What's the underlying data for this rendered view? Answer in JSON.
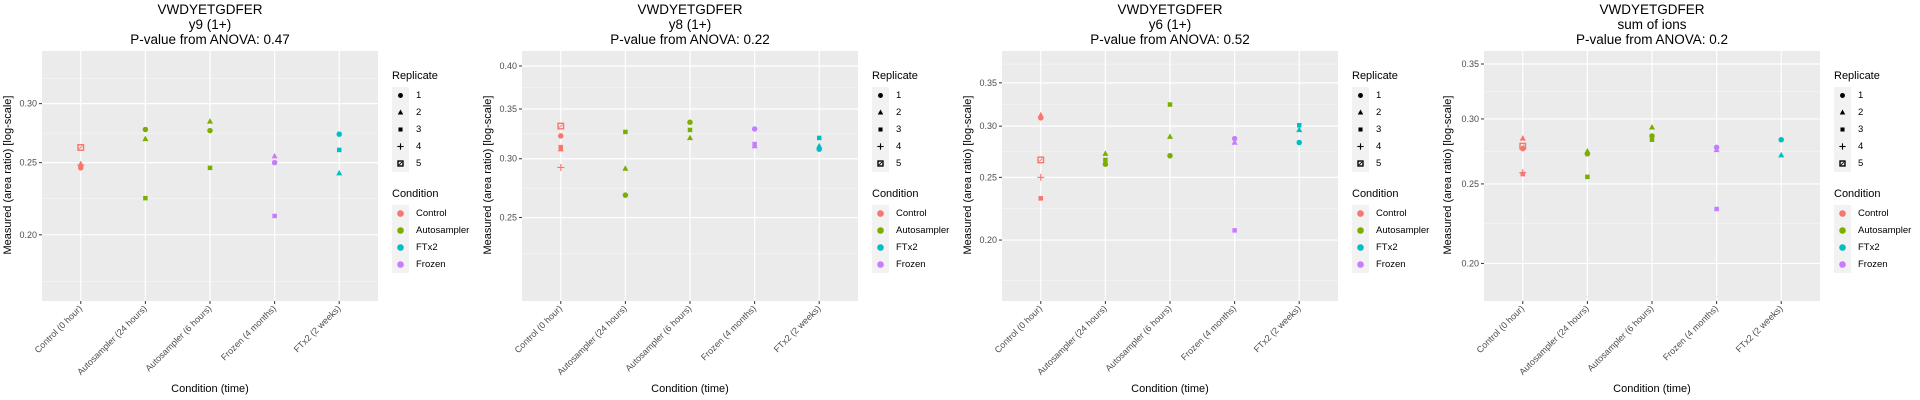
{
  "legend": {
    "replicate_title": "Replicate",
    "replicates": [
      {
        "label": "1",
        "shape": "circle"
      },
      {
        "label": "2",
        "shape": "triangle"
      },
      {
        "label": "3",
        "shape": "square"
      },
      {
        "label": "4",
        "shape": "plus"
      },
      {
        "label": "5",
        "shape": "square-cross"
      }
    ],
    "condition_title": "Condition",
    "conditions": [
      {
        "label": "Control",
        "color": "#F8766D"
      },
      {
        "label": "Autosampler",
        "color": "#7CAE00"
      },
      {
        "label": "FTx2",
        "color": "#00BFC4"
      },
      {
        "label": "Frozen",
        "color": "#C77CFF"
      }
    ]
  },
  "chart_data": [
    {
      "type": "scatter",
      "title": [
        "VWDYETGDFER",
        "y9 (1+)",
        "P-value from ANOVA: 0.47"
      ],
      "xlabel": "Condition (time)",
      "ylabel": "Measured (area ratio) [log-scale]",
      "yscale": "log",
      "ylim": [
        0.163,
        0.353
      ],
      "yticks": [
        0.2,
        0.25,
        0.3
      ],
      "ytick_labels": [
        "0.20",
        "0.25",
        "0.30"
      ],
      "grid": true,
      "legend_position": "right",
      "categories": [
        "Control (0 hour)",
        "Autosampler (24 hours)",
        "Autosampler (6 hours)",
        "Frozen (4 months)",
        "FTx2 (2 weeks)"
      ],
      "points": [
        {
          "x": "Control (0 hour)",
          "condition": "Control",
          "replicate": "5",
          "y": 0.262
        },
        {
          "x": "Control (0 hour)",
          "condition": "Control",
          "replicate": "2",
          "y": 0.249
        },
        {
          "x": "Control (0 hour)",
          "condition": "Control",
          "replicate": "4",
          "y": 0.248
        },
        {
          "x": "Control (0 hour)",
          "condition": "Control",
          "replicate": "3",
          "y": 0.247
        },
        {
          "x": "Control (0 hour)",
          "condition": "Control",
          "replicate": "1",
          "y": 0.246
        },
        {
          "x": "Autosampler (24 hours)",
          "condition": "Autosampler",
          "replicate": "1",
          "y": 0.277
        },
        {
          "x": "Autosampler (24 hours)",
          "condition": "Autosampler",
          "replicate": "2",
          "y": 0.269
        },
        {
          "x": "Autosampler (24 hours)",
          "condition": "Autosampler",
          "replicate": "3",
          "y": 0.224
        },
        {
          "x": "Autosampler (6 hours)",
          "condition": "Autosampler",
          "replicate": "2",
          "y": 0.284
        },
        {
          "x": "Autosampler (6 hours)",
          "condition": "Autosampler",
          "replicate": "1",
          "y": 0.276
        },
        {
          "x": "Autosampler (6 hours)",
          "condition": "Autosampler",
          "replicate": "3",
          "y": 0.246
        },
        {
          "x": "Frozen (4 months)",
          "condition": "Frozen",
          "replicate": "2",
          "y": 0.255
        },
        {
          "x": "Frozen (4 months)",
          "condition": "Frozen",
          "replicate": "1",
          "y": 0.25
        },
        {
          "x": "Frozen (4 months)",
          "condition": "Frozen",
          "replicate": "3",
          "y": 0.212
        },
        {
          "x": "FTx2 (2 weeks)",
          "condition": "FTx2",
          "replicate": "1",
          "y": 0.273
        },
        {
          "x": "FTx2 (2 weeks)",
          "condition": "FTx2",
          "replicate": "3",
          "y": 0.26
        },
        {
          "x": "FTx2 (2 weeks)",
          "condition": "FTx2",
          "replicate": "2",
          "y": 0.242
        }
      ]
    },
    {
      "type": "scatter",
      "title": [
        "VWDYETGDFER",
        "y8 (1+)",
        "P-value from ANOVA: 0.22"
      ],
      "xlabel": "Condition (time)",
      "ylabel": "Measured (area ratio) [log-scale]",
      "yscale": "log",
      "ylim": [
        0.193,
        0.419
      ],
      "yticks": [
        0.25,
        0.3,
        0.35,
        0.4
      ],
      "ytick_labels": [
        "0.25",
        "0.30",
        "0.35",
        "0.40"
      ],
      "grid": true,
      "legend_position": "right",
      "categories": [
        "Control (0 hour)",
        "Autosampler (24 hours)",
        "Autosampler (6 hours)",
        "Frozen (4 months)",
        "FTx2 (2 weeks)"
      ],
      "points": [
        {
          "x": "Control (0 hour)",
          "condition": "Control",
          "replicate": "5",
          "y": 0.332
        },
        {
          "x": "Control (0 hour)",
          "condition": "Control",
          "replicate": "1",
          "y": 0.322
        },
        {
          "x": "Control (0 hour)",
          "condition": "Control",
          "replicate": "3",
          "y": 0.311
        },
        {
          "x": "Control (0 hour)",
          "condition": "Control",
          "replicate": "2",
          "y": 0.309
        },
        {
          "x": "Control (0 hour)",
          "condition": "Control",
          "replicate": "4",
          "y": 0.292
        },
        {
          "x": "Autosampler (24 hours)",
          "condition": "Autosampler",
          "replicate": "3",
          "y": 0.326
        },
        {
          "x": "Autosampler (24 hours)",
          "condition": "Autosampler",
          "replicate": "2",
          "y": 0.291
        },
        {
          "x": "Autosampler (24 hours)",
          "condition": "Autosampler",
          "replicate": "1",
          "y": 0.268
        },
        {
          "x": "Autosampler (6 hours)",
          "condition": "Autosampler",
          "replicate": "1",
          "y": 0.336
        },
        {
          "x": "Autosampler (6 hours)",
          "condition": "Autosampler",
          "replicate": "3",
          "y": 0.328
        },
        {
          "x": "Autosampler (6 hours)",
          "condition": "Autosampler",
          "replicate": "2",
          "y": 0.32
        },
        {
          "x": "Frozen (4 months)",
          "condition": "Frozen",
          "replicate": "1",
          "y": 0.329
        },
        {
          "x": "Frozen (4 months)",
          "condition": "Frozen",
          "replicate": "3",
          "y": 0.314
        },
        {
          "x": "Frozen (4 months)",
          "condition": "Frozen",
          "replicate": "2",
          "y": 0.312
        },
        {
          "x": "FTx2 (2 weeks)",
          "condition": "FTx2",
          "replicate": "3",
          "y": 0.32
        },
        {
          "x": "FTx2 (2 weeks)",
          "condition": "FTx2",
          "replicate": "2",
          "y": 0.312
        },
        {
          "x": "FTx2 (2 weeks)",
          "condition": "FTx2",
          "replicate": "1",
          "y": 0.309
        }
      ]
    },
    {
      "type": "scatter",
      "title": [
        "VWDYETGDFER",
        "y6 (1+)",
        "P-value from ANOVA: 0.52"
      ],
      "xlabel": "Condition (time)",
      "ylabel": "Measured (area ratio) [log-scale]",
      "yscale": "log",
      "ylim": [
        0.161,
        0.392
      ],
      "yticks": [
        0.2,
        0.25,
        0.3,
        0.35
      ],
      "ytick_labels": [
        "0.20",
        "0.25",
        "0.30",
        "0.35"
      ],
      "grid": true,
      "legend_position": "right",
      "categories": [
        "Control (0 hour)",
        "Autosampler (24 hours)",
        "Autosampler (6 hours)",
        "Frozen (4 months)",
        "FTx2 (2 weeks)"
      ],
      "points": [
        {
          "x": "Control (0 hour)",
          "condition": "Control",
          "replicate": "2",
          "y": 0.312
        },
        {
          "x": "Control (0 hour)",
          "condition": "Control",
          "replicate": "1",
          "y": 0.309
        },
        {
          "x": "Control (0 hour)",
          "condition": "Control",
          "replicate": "5",
          "y": 0.266
        },
        {
          "x": "Control (0 hour)",
          "condition": "Control",
          "replicate": "4",
          "y": 0.25
        },
        {
          "x": "Control (0 hour)",
          "condition": "Control",
          "replicate": "3",
          "y": 0.232
        },
        {
          "x": "Autosampler (24 hours)",
          "condition": "Autosampler",
          "replicate": "2",
          "y": 0.272
        },
        {
          "x": "Autosampler (24 hours)",
          "condition": "Autosampler",
          "replicate": "3",
          "y": 0.266
        },
        {
          "x": "Autosampler (24 hours)",
          "condition": "Autosampler",
          "replicate": "1",
          "y": 0.262
        },
        {
          "x": "Autosampler (6 hours)",
          "condition": "Autosampler",
          "replicate": "3",
          "y": 0.324
        },
        {
          "x": "Autosampler (6 hours)",
          "condition": "Autosampler",
          "replicate": "2",
          "y": 0.289
        },
        {
          "x": "Autosampler (6 hours)",
          "condition": "Autosampler",
          "replicate": "1",
          "y": 0.27
        },
        {
          "x": "Frozen (4 months)",
          "condition": "Frozen",
          "replicate": "1",
          "y": 0.287
        },
        {
          "x": "Frozen (4 months)",
          "condition": "Frozen",
          "replicate": "2",
          "y": 0.283
        },
        {
          "x": "Frozen (4 months)",
          "condition": "Frozen",
          "replicate": "3",
          "y": 0.207
        },
        {
          "x": "FTx2 (2 weeks)",
          "condition": "FTx2",
          "replicate": "3",
          "y": 0.301
        },
        {
          "x": "FTx2 (2 weeks)",
          "condition": "FTx2",
          "replicate": "2",
          "y": 0.296
        },
        {
          "x": "FTx2 (2 weeks)",
          "condition": "FTx2",
          "replicate": "1",
          "y": 0.283
        }
      ]
    },
    {
      "type": "scatter",
      "title": [
        "VWDYETGDFER",
        "sum of ions",
        "P-value from ANOVA: 0.2"
      ],
      "xlabel": "Condition (time)",
      "ylabel": "Measured (area ratio) [log-scale]",
      "yscale": "log",
      "ylim": [
        0.18,
        0.363
      ],
      "yticks": [
        0.2,
        0.25,
        0.3,
        0.35
      ],
      "ytick_labels": [
        "0.20",
        "0.25",
        "0.30",
        "0.35"
      ],
      "grid": true,
      "legend_position": "right",
      "categories": [
        "Control (0 hour)",
        "Autosampler (24 hours)",
        "Autosampler (6 hours)",
        "Frozen (4 months)",
        "FTx2 (2 weeks)"
      ],
      "points": [
        {
          "x": "Control (0 hour)",
          "condition": "Control",
          "replicate": "2",
          "y": 0.284
        },
        {
          "x": "Control (0 hour)",
          "condition": "Control",
          "replicate": "5",
          "y": 0.278
        },
        {
          "x": "Control (0 hour)",
          "condition": "Control",
          "replicate": "1",
          "y": 0.276
        },
        {
          "x": "Control (0 hour)",
          "condition": "Control",
          "replicate": "4",
          "y": 0.258
        },
        {
          "x": "Control (0 hour)",
          "condition": "Control",
          "replicate": "3",
          "y": 0.257
        },
        {
          "x": "Autosampler (24 hours)",
          "condition": "Autosampler",
          "replicate": "2",
          "y": 0.274
        },
        {
          "x": "Autosampler (24 hours)",
          "condition": "Autosampler",
          "replicate": "1",
          "y": 0.272
        },
        {
          "x": "Autosampler (24 hours)",
          "condition": "Autosampler",
          "replicate": "3",
          "y": 0.255
        },
        {
          "x": "Autosampler (6 hours)",
          "condition": "Autosampler",
          "replicate": "2",
          "y": 0.293
        },
        {
          "x": "Autosampler (6 hours)",
          "condition": "Autosampler",
          "replicate": "1",
          "y": 0.286
        },
        {
          "x": "Autosampler (6 hours)",
          "condition": "Autosampler",
          "replicate": "3",
          "y": 0.283
        },
        {
          "x": "Frozen (4 months)",
          "condition": "Frozen",
          "replicate": "1",
          "y": 0.277
        },
        {
          "x": "Frozen (4 months)",
          "condition": "Frozen",
          "replicate": "2",
          "y": 0.275
        },
        {
          "x": "Frozen (4 months)",
          "condition": "Frozen",
          "replicate": "3",
          "y": 0.233
        },
        {
          "x": "FTx2 (2 weeks)",
          "condition": "FTx2",
          "replicate": "1",
          "y": 0.283
        },
        {
          "x": "FTx2 (2 weeks)",
          "condition": "FTx2",
          "replicate": "2",
          "y": 0.271
        }
      ]
    }
  ]
}
